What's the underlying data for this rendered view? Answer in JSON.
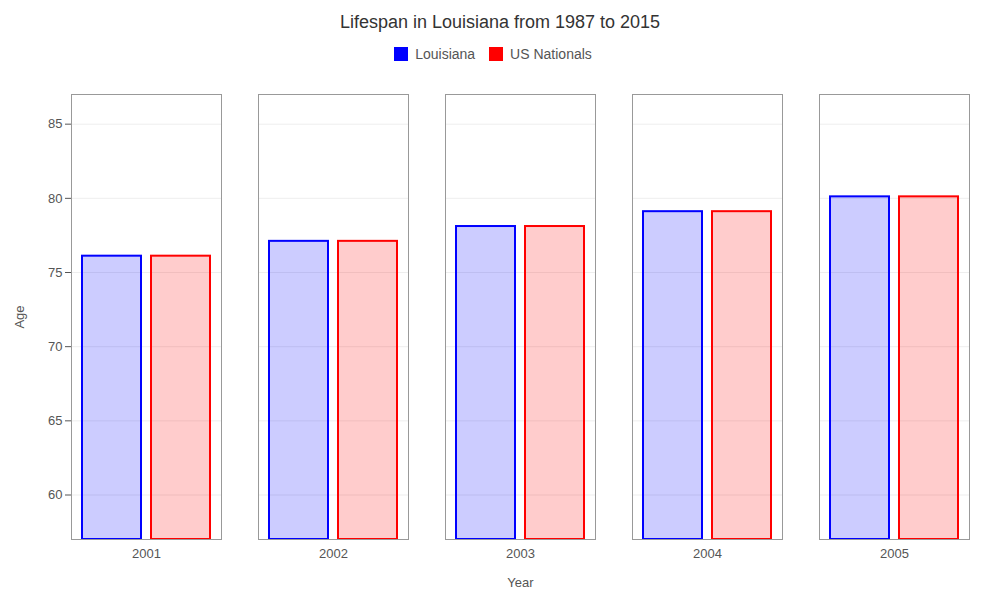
{
  "chart_data": {
    "type": "bar",
    "title": "Lifespan in Louisiana from 1987 to 2015",
    "xlabel": "Year",
    "ylabel": "Age",
    "categories": [
      "2001",
      "2002",
      "2003",
      "2004",
      "2005"
    ],
    "series": [
      {
        "name": "Louisiana",
        "color": "#0000ff",
        "values": [
          76.1,
          77.1,
          78.1,
          79.1,
          80.1
        ]
      },
      {
        "name": "US Nationals",
        "color": "#ff0000",
        "values": [
          76.1,
          77.1,
          78.1,
          79.1,
          80.1
        ]
      }
    ],
    "ylim": [
      57,
      87
    ],
    "yticks": [
      60,
      65,
      70,
      75,
      80,
      85
    ],
    "grid": true,
    "legend": "top"
  }
}
